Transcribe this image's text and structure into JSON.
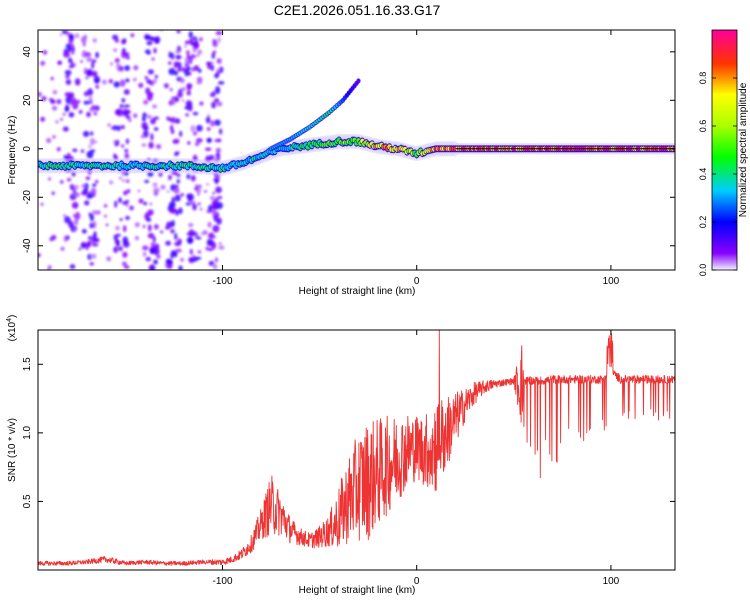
{
  "figure_title": "C2E1.2026.051.16.33.G17",
  "chart_data": [
    {
      "type": "heatmap",
      "xlabel": "Height of straight line (km)",
      "ylabel": "Frequency (Hz)",
      "xlim": [
        -195,
        133
      ],
      "ylim": [
        -50,
        49
      ],
      "x_ticks": [
        -100,
        0,
        100
      ],
      "y_ticks": [
        -40,
        -20,
        0,
        20,
        40
      ],
      "colorbar": {
        "label": "Normalized spectral amplitude",
        "range": [
          0,
          1
        ],
        "ticks": [
          0.0,
          0.2,
          0.4,
          0.6,
          0.8
        ],
        "tick_labels": [
          "0.0",
          "0.2",
          "0.4",
          "0.6",
          "0.8"
        ]
      },
      "main_track": {
        "x": [
          -195,
          -150,
          -120,
          -100,
          -90,
          -80,
          -70,
          -60,
          -50,
          -40,
          -30,
          -20,
          -10,
          0,
          10,
          30,
          60,
          100,
          133
        ],
        "freq": [
          -7,
          -7,
          -7,
          -8,
          -6,
          -3,
          0,
          1,
          2,
          3,
          3,
          1,
          0,
          -2,
          0,
          0,
          0,
          0,
          0
        ],
        "amplitude": [
          0.42,
          0.42,
          0.42,
          0.42,
          0.4,
          0.38,
          0.35,
          0.45,
          0.5,
          0.55,
          0.65,
          0.8,
          0.85,
          0.55,
          0.9,
          0.95,
          0.95,
          0.95,
          0.95
        ]
      },
      "side_branch": {
        "x": [
          -75,
          -65,
          -55,
          -45,
          -38,
          -33,
          -30
        ],
        "freq": [
          0,
          4,
          9,
          15,
          20,
          25,
          28
        ],
        "amplitude": [
          0.3,
          0.3,
          0.35,
          0.4,
          0.25,
          0.15,
          0.1
        ]
      },
      "noise_bands_x": [
        -178,
        -168,
        -152,
        -137,
        -125,
        -115,
        -104
      ]
    },
    {
      "type": "line",
      "xlabel": "Height of straight line (km)",
      "ylabel": "SNR (10 * v/v)",
      "multiplier": "(x10",
      "multiplier_exp": "4",
      "xlim": [
        -195,
        133
      ],
      "ylim": [
        0,
        1.75
      ],
      "x_ticks": [
        -100,
        0,
        100
      ],
      "y_ticks": [
        0.5,
        1.0,
        1.5
      ],
      "y_tick_labels": [
        "0.5",
        "1.0",
        "1.5"
      ],
      "series": [
        {
          "name": "SNR",
          "color": "#ee3333",
          "x": [
            -195,
            -180,
            -170,
            -160,
            -150,
            -140,
            -130,
            -120,
            -110,
            -100,
            -95,
            -90,
            -85,
            -80,
            -75,
            -70,
            -65,
            -60,
            -55,
            -50,
            -45,
            -40,
            -35,
            -30,
            -25,
            -20,
            -15,
            -10,
            -5,
            0,
            5,
            10,
            15,
            20,
            25,
            30,
            35,
            40,
            45,
            50,
            55,
            60,
            65,
            70,
            75,
            80,
            85,
            90,
            95,
            100,
            105,
            110,
            115,
            120,
            125,
            133
          ],
          "y": [
            0.05,
            0.05,
            0.06,
            0.08,
            0.05,
            0.06,
            0.05,
            0.05,
            0.06,
            0.06,
            0.08,
            0.12,
            0.2,
            0.35,
            0.5,
            0.42,
            0.3,
            0.25,
            0.22,
            0.25,
            0.3,
            0.4,
            0.55,
            0.65,
            0.7,
            0.75,
            0.8,
            0.85,
            0.9,
            0.92,
            0.9,
            0.95,
            1.02,
            1.12,
            1.22,
            1.3,
            1.34,
            1.36,
            1.37,
            1.38,
            1.38,
            1.38,
            1.38,
            1.39,
            1.39,
            1.39,
            1.39,
            1.39,
            1.39,
            1.45,
            1.39,
            1.39,
            1.39,
            1.39,
            1.39,
            1.39
          ],
          "spread": [
            0.02,
            0.02,
            0.02,
            0.03,
            0.02,
            0.02,
            0.02,
            0.02,
            0.02,
            0.03,
            0.03,
            0.05,
            0.08,
            0.15,
            0.28,
            0.2,
            0.12,
            0.08,
            0.07,
            0.1,
            0.15,
            0.3,
            0.4,
            0.5,
            0.55,
            0.5,
            0.45,
            0.4,
            0.35,
            0.3,
            0.35,
            0.45,
            0.35,
            0.25,
            0.15,
            0.1,
            0.06,
            0.04,
            0.03,
            0.03,
            0.5,
            0.7,
            0.72,
            0.65,
            0.55,
            0.5,
            0.48,
            0.45,
            0.42,
            0.35,
            0.35,
            0.33,
            0.33,
            0.33,
            0.33,
            0.3
          ]
        }
      ]
    }
  ]
}
